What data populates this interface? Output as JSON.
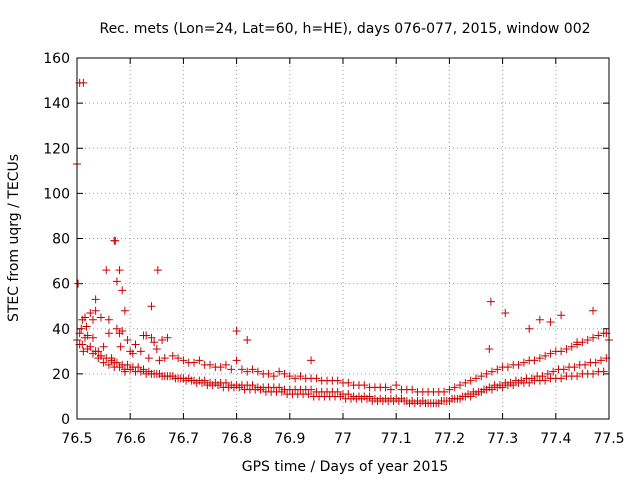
{
  "chart_data": {
    "type": "scatter",
    "title": "Rec. mets (Lon=24, Lat=60, h=HE), days 076-077, 2015, window 002",
    "xlabel": "GPS time / Days of year 2015",
    "ylabel": "STEC from uqrg / TECUs",
    "xlim": [
      76.5,
      77.5
    ],
    "ylim": [
      0,
      160
    ],
    "xticks": [
      76.5,
      76.6,
      76.7,
      76.8,
      76.9,
      77.0,
      77.1,
      77.2,
      77.3,
      77.4,
      77.5
    ],
    "xtick_labels": [
      "76.5",
      "76.6",
      "76.7",
      "76.8",
      "76.9",
      "77",
      "77.1",
      "77.2",
      "77.3",
      "77.4",
      "77.5"
    ],
    "yticks": [
      0,
      20,
      40,
      60,
      80,
      100,
      120,
      140,
      160
    ],
    "ytick_labels": [
      "0",
      "20",
      "40",
      "60",
      "80",
      "100",
      "120",
      "140",
      "160"
    ],
    "grid": true,
    "marker": "+",
    "color": "#cc0000",
    "series": [
      {
        "name": "STEC",
        "x": [
          76.5,
          76.505,
          76.51,
          76.502,
          76.508,
          76.515,
          76.52,
          76.505,
          76.512,
          76.518,
          76.525,
          76.53,
          76.535,
          76.54,
          76.53,
          76.545,
          76.555,
          76.56,
          76.57,
          76.575,
          76.58,
          76.585,
          76.58,
          76.59,
          76.595,
          76.545,
          76.55,
          76.56,
          76.565,
          76.57,
          76.575,
          76.582,
          76.59,
          76.6,
          76.605,
          76.61,
          76.62,
          76.625,
          76.63,
          76.635,
          76.64,
          76.645,
          76.65,
          76.655,
          76.66,
          76.665,
          76.67,
          76.68,
          76.69,
          76.7,
          76.71,
          76.72,
          76.73,
          76.74,
          76.75,
          76.76,
          76.77,
          76.78,
          76.79,
          76.8,
          76.81,
          76.82,
          76.83,
          76.84,
          76.85,
          76.86,
          76.87,
          76.88,
          76.89,
          76.9,
          76.91,
          76.92,
          76.93,
          76.94,
          76.95,
          76.96,
          76.97,
          76.98,
          76.99,
          77.0,
          77.01,
          77.02,
          77.03,
          77.04,
          77.05,
          77.06,
          77.07,
          77.08,
          77.09,
          77.1,
          77.11,
          77.12,
          77.13,
          77.14,
          77.15,
          77.16,
          77.17,
          77.18,
          77.19,
          77.2,
          77.21,
          77.22,
          77.23,
          77.24,
          77.25,
          77.26,
          77.27,
          77.28,
          77.29,
          77.3,
          77.31,
          77.32,
          77.33,
          77.34,
          77.35,
          77.36,
          77.37,
          77.38,
          77.39,
          77.4,
          77.41,
          77.42,
          77.43,
          77.44,
          77.45,
          77.46,
          77.47,
          77.48,
          77.49,
          77.5,
          76.5,
          76.51,
          76.52,
          76.53,
          76.54,
          76.55,
          76.56,
          76.57,
          76.58,
          76.59,
          76.6,
          76.61,
          76.62,
          76.63,
          76.64,
          76.65,
          76.66,
          76.67,
          76.68,
          76.69,
          76.7,
          76.71,
          76.72,
          76.73,
          76.74,
          76.75,
          76.76,
          76.77,
          76.78,
          76.79,
          76.8,
          76.81,
          76.82,
          76.83,
          76.84,
          76.85,
          76.86,
          76.87,
          76.88,
          76.89,
          76.9,
          76.91,
          76.92,
          76.93,
          76.94,
          76.95,
          76.96,
          76.97,
          76.98,
          76.99,
          77.0,
          77.01,
          77.02,
          77.03,
          77.04,
          77.05,
          77.06,
          77.07,
          77.08,
          77.09,
          77.1,
          77.11,
          77.12,
          77.13,
          77.14,
          77.15,
          77.16,
          77.17,
          77.18,
          77.19,
          77.2,
          77.21,
          77.22,
          77.23,
          77.24,
          77.25,
          77.26,
          77.27,
          77.28,
          77.29,
          77.3,
          77.31,
          77.32,
          77.33,
          77.34,
          77.35,
          77.36,
          77.37,
          77.38,
          77.39,
          77.4,
          77.41,
          77.42,
          77.43,
          77.44,
          77.45,
          77.46,
          77.47,
          77.48,
          77.49,
          76.505,
          76.515,
          76.525,
          76.535,
          76.545,
          76.555,
          76.565,
          76.575,
          76.585,
          76.595,
          76.605,
          76.615,
          76.625,
          76.635,
          76.645,
          76.655,
          76.665,
          76.675,
          76.685,
          76.695,
          76.705,
          76.715,
          76.725,
          76.735,
          76.745,
          76.755,
          76.765,
          76.775,
          76.785,
          76.795,
          76.805,
          76.815,
          76.825,
          76.835,
          76.845,
          76.855,
          76.865,
          76.875,
          76.885,
          76.895,
          76.905,
          76.915,
          76.925,
          76.935,
          76.945,
          76.955,
          76.965,
          76.975,
          76.985,
          76.995,
          77.005,
          77.015,
          77.025,
          77.035,
          77.045,
          77.055,
          77.065,
          77.075,
          77.085,
          77.095,
          77.105,
          77.115,
          77.125,
          77.135,
          77.145,
          77.155,
          77.165,
          77.175,
          77.185,
          77.195,
          77.205,
          77.215,
          77.225,
          77.235,
          77.245,
          77.255,
          77.265,
          77.275,
          77.285,
          77.295,
          77.305,
          77.315,
          77.325,
          77.335,
          77.345,
          77.355,
          77.365,
          77.375,
          77.385,
          77.395,
          77.405,
          77.415,
          77.425,
          77.435,
          77.445,
          77.455,
          77.465,
          77.475,
          77.485,
          77.495,
          76.512,
          76.572,
          76.652,
          76.8,
          76.82,
          76.94,
          77.275,
          77.278,
          77.305,
          77.35,
          77.37,
          77.39,
          77.41,
          77.44,
          77.47,
          77.495,
          76.64,
          76.61,
          76.585,
          76.535
        ],
        "y": [
          113,
          149,
          44,
          60,
          40,
          45,
          37,
          33,
          30,
          41,
          47,
          36,
          53,
          30,
          44,
          45,
          66,
          44,
          79,
          61,
          66,
          57,
          38,
          48,
          35,
          28,
          32,
          38,
          27,
          25,
          40,
          32,
          21,
          30,
          29,
          33,
          30,
          37,
          37,
          27,
          36,
          34,
          31,
          26,
          35,
          27,
          36,
          28,
          27,
          26,
          25,
          25,
          26,
          24,
          24,
          23,
          23,
          24,
          22,
          26,
          22,
          21,
          22,
          21,
          20,
          20,
          19,
          21,
          20,
          19,
          18,
          19,
          18,
          18,
          18,
          17,
          17,
          17,
          17,
          16,
          16,
          15,
          15,
          15,
          14,
          14,
          14,
          14,
          13,
          15,
          13,
          13,
          13,
          12,
          12,
          12,
          12,
          12,
          12,
          13,
          14,
          15,
          16,
          17,
          18,
          19,
          20,
          21,
          22,
          23,
          23,
          24,
          24,
          25,
          26,
          26,
          27,
          28,
          29,
          30,
          30,
          31,
          32,
          33,
          34,
          35,
          36,
          37,
          38,
          35,
          35,
          33,
          31,
          29,
          27,
          25,
          24,
          23,
          23,
          22,
          22,
          21,
          21,
          20,
          20,
          20,
          19,
          19,
          19,
          18,
          18,
          18,
          17,
          17,
          17,
          16,
          16,
          16,
          16,
          15,
          15,
          15,
          15,
          15,
          14,
          14,
          14,
          14,
          14,
          13,
          13,
          13,
          13,
          13,
          13,
          12,
          12,
          12,
          12,
          12,
          11,
          11,
          10,
          10,
          10,
          10,
          9,
          9,
          9,
          9,
          9,
          9,
          8,
          8,
          8,
          8,
          7,
          7,
          7,
          8,
          8,
          9,
          9,
          10,
          10,
          11,
          12,
          13,
          13,
          14,
          14,
          15,
          15,
          16,
          16,
          16,
          17,
          17,
          17,
          18,
          18,
          18,
          19,
          19,
          19,
          20,
          20,
          20,
          21,
          21,
          38,
          36,
          32,
          30,
          28,
          27,
          26,
          25,
          24,
          24,
          23,
          23,
          22,
          21,
          20,
          20,
          19,
          19,
          18,
          18,
          17,
          17,
          16,
          16,
          15,
          15,
          15,
          14,
          14,
          14,
          14,
          13,
          13,
          13,
          13,
          12,
          12,
          12,
          12,
          11,
          11,
          11,
          11,
          11,
          10,
          10,
          10,
          10,
          10,
          10,
          9,
          9,
          9,
          9,
          9,
          8,
          8,
          8,
          8,
          8,
          8,
          8,
          7,
          7,
          7,
          7,
          7,
          7,
          8,
          8,
          9,
          9,
          10,
          11,
          12,
          12,
          13,
          14,
          15,
          15,
          16,
          16,
          17,
          17,
          18,
          18,
          19,
          19,
          20,
          21,
          22,
          22,
          23,
          23,
          24,
          24,
          25,
          25,
          26,
          27,
          149,
          79,
          66,
          39,
          35,
          26,
          31,
          52,
          47,
          40,
          44,
          43,
          46,
          34,
          48,
          38,
          50,
          33,
          39,
          48
        ]
      }
    ]
  }
}
